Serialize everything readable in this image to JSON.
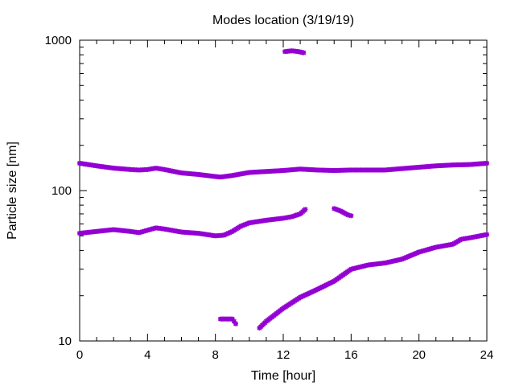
{
  "chart_data": {
    "type": "scatter",
    "title": "Modes location (3/19/19)",
    "xlabel": "Time [hour]",
    "ylabel": "Particle size [nm]",
    "xlim": [
      0,
      24
    ],
    "ylim": [
      10,
      1000
    ],
    "yscale": "log",
    "grid": false,
    "legend": "none",
    "xticks": [
      0,
      4,
      8,
      12,
      16,
      20,
      24
    ],
    "xtick_labels": [
      "0",
      "4",
      "8",
      "12",
      "16",
      "20",
      "24"
    ],
    "yticks": [
      10,
      100,
      1000
    ],
    "ytick_labels": [
      "10",
      "100",
      "1000"
    ],
    "marker_color": "#9400d3",
    "series": [
      {
        "x": [
          0,
          1,
          2,
          3,
          3.5,
          4,
          4.5,
          5,
          6,
          7,
          8,
          8.3,
          9,
          10,
          11,
          12,
          13,
          14,
          15,
          16,
          17,
          18,
          19,
          20,
          21,
          22,
          23,
          24
        ],
        "y": [
          152,
          146,
          141,
          138,
          137,
          138,
          141,
          138,
          131,
          128,
          124,
          123,
          126,
          132,
          134,
          136,
          139,
          137,
          136,
          137,
          137,
          137,
          140,
          143,
          146,
          148,
          149,
          152
        ]
      },
      {
        "x": [
          0,
          1,
          2,
          3,
          3.5,
          4,
          4.5,
          5,
          6,
          7,
          8,
          8.5,
          9,
          9.5,
          10,
          11,
          12,
          12.5,
          13,
          13.3
        ],
        "y": [
          52,
          53.5,
          55,
          53.5,
          52.5,
          54.5,
          56.5,
          55.5,
          53,
          52,
          50,
          50.5,
          53.5,
          58,
          61,
          63.5,
          65.5,
          67,
          70,
          75
        ]
      },
      {
        "x": [
          15.0,
          15.4,
          15.8,
          16.0
        ],
        "y": [
          76,
          73,
          69,
          68
        ]
      },
      {
        "x": [
          12.1,
          12.5,
          12.9,
          13.2
        ],
        "y": [
          840,
          850,
          840,
          825
        ]
      },
      {
        "x": [
          8.3,
          9.0,
          9.2
        ],
        "y": [
          14,
          14,
          13
        ]
      },
      {
        "x": [
          10.6,
          11,
          12,
          13,
          14,
          15,
          16,
          17,
          18,
          19,
          20,
          21,
          22,
          22.5,
          23,
          24
        ],
        "y": [
          12.2,
          13.5,
          16.5,
          19.5,
          22,
          25,
          30,
          32,
          33,
          35,
          39,
          42,
          44,
          47.5,
          48.5,
          51
        ]
      }
    ]
  }
}
